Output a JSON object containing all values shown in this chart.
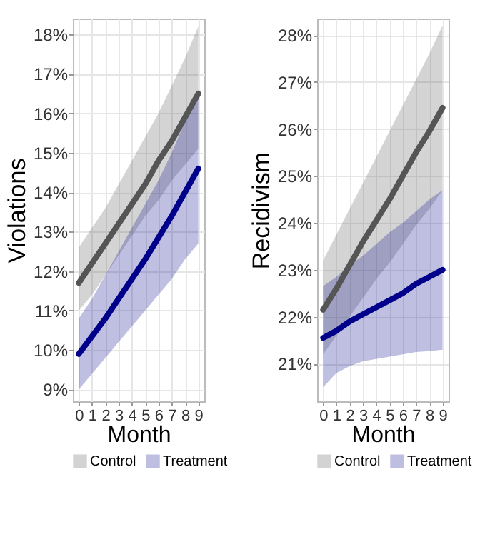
{
  "chart_data": [
    {
      "type": "line",
      "xlabel": "Month",
      "ylabel": "Violations",
      "x": [
        0,
        1,
        2,
        3,
        4,
        5,
        6,
        7,
        8,
        9
      ],
      "xlim": [
        -0.45,
        9.45
      ],
      "xticks": [
        0,
        1,
        2,
        3,
        4,
        5,
        6,
        7,
        8,
        9
      ],
      "ylim": [
        8.7,
        18.4
      ],
      "yticks": [
        {
          "value": 9,
          "label": "9%"
        },
        {
          "value": 10,
          "label": "10%"
        },
        {
          "value": 11,
          "label": "11%"
        },
        {
          "value": 12,
          "label": "12%"
        },
        {
          "value": 13,
          "label": "13%"
        },
        {
          "value": 14,
          "label": "14%"
        },
        {
          "value": 15,
          "label": "15%"
        },
        {
          "value": 16,
          "label": "16%"
        },
        {
          "value": 17,
          "label": "17%"
        },
        {
          "value": 18,
          "label": "18%"
        }
      ],
      "grid": true,
      "legend": "bottom",
      "series": [
        {
          "name": "Control",
          "color": "#555555",
          "values": [
            11.7,
            12.2,
            12.7,
            13.2,
            13.7,
            14.2,
            14.8,
            15.3,
            15.9,
            16.5
          ],
          "lower": [
            11.0,
            11.4,
            11.9,
            12.4,
            12.9,
            13.4,
            13.8,
            14.3,
            14.7,
            15.1
          ],
          "upper": [
            12.6,
            13.1,
            13.6,
            14.2,
            14.8,
            15.4,
            16.0,
            16.7,
            17.4,
            18.2
          ]
        },
        {
          "name": "Treatment",
          "color": "#00008b",
          "values": [
            9.9,
            10.35,
            10.8,
            11.3,
            11.8,
            12.3,
            12.85,
            13.4,
            14.0,
            14.6
          ],
          "lower": [
            9.0,
            9.4,
            9.8,
            10.2,
            10.6,
            11.0,
            11.4,
            11.8,
            12.3,
            12.7
          ],
          "upper": [
            10.8,
            11.3,
            11.9,
            12.5,
            13.1,
            13.7,
            14.3,
            15.0,
            15.8,
            16.6
          ]
        }
      ]
    },
    {
      "type": "line",
      "xlabel": "Month",
      "ylabel": "Recidivism",
      "x": [
        0,
        1,
        2,
        3,
        4,
        5,
        6,
        7,
        8,
        9
      ],
      "xlim": [
        -0.45,
        9.45
      ],
      "xticks": [
        0,
        1,
        2,
        3,
        4,
        5,
        6,
        7,
        8,
        9
      ],
      "ylim": [
        20.2,
        28.35
      ],
      "yticks": [
        {
          "value": 21,
          "label": "21%"
        },
        {
          "value": 22,
          "label": "22%"
        },
        {
          "value": 23,
          "label": "23%"
        },
        {
          "value": 24,
          "label": "24%"
        },
        {
          "value": 25,
          "label": "25%"
        },
        {
          "value": 26,
          "label": "26%"
        },
        {
          "value": 27,
          "label": "27%"
        },
        {
          "value": 28,
          "label": "28%"
        }
      ],
      "grid": true,
      "legend": "bottom",
      "series": [
        {
          "name": "Control",
          "color": "#555555",
          "values": [
            22.15,
            22.6,
            23.1,
            23.6,
            24.05,
            24.5,
            25.0,
            25.5,
            25.95,
            26.45
          ],
          "lower": [
            21.2,
            21.6,
            22.0,
            22.4,
            22.8,
            23.15,
            23.55,
            23.95,
            24.3,
            24.7
          ],
          "upper": [
            23.2,
            23.75,
            24.3,
            24.85,
            25.4,
            25.95,
            26.5,
            27.05,
            27.6,
            28.2
          ]
        },
        {
          "name": "Treatment",
          "color": "#00008b",
          "values": [
            21.55,
            21.7,
            21.9,
            22.05,
            22.2,
            22.35,
            22.5,
            22.7,
            22.85,
            23.0
          ],
          "lower": [
            20.5,
            20.8,
            20.95,
            21.05,
            21.1,
            21.15,
            21.2,
            21.25,
            21.27,
            21.3
          ],
          "upper": [
            22.65,
            22.85,
            23.1,
            23.3,
            23.55,
            23.8,
            24.0,
            24.25,
            24.5,
            24.7
          ]
        }
      ]
    }
  ]
}
